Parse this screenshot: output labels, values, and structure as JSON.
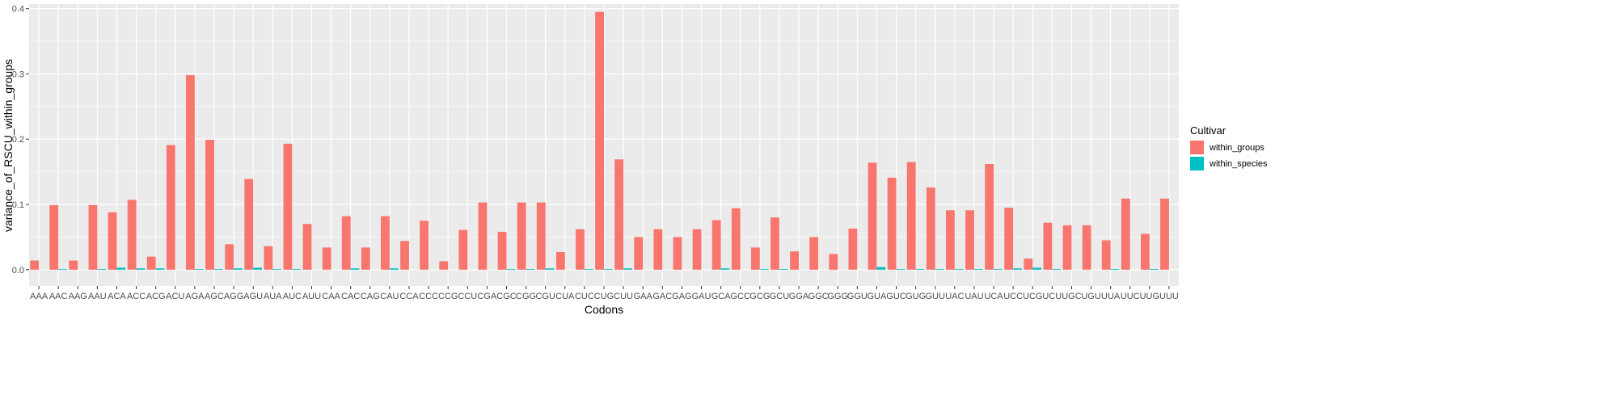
{
  "chart_data": {
    "type": "bar",
    "title": "",
    "xlabel": "Codons",
    "ylabel": "variance_of_RSCU_within_groups",
    "ylim": [
      -0.025,
      0.407
    ],
    "yticks": [
      0.0,
      0.1,
      0.2,
      0.3,
      0.4
    ],
    "ytick_labels": [
      "0.0",
      "0.1",
      "0.2",
      "0.3",
      "0.4"
    ],
    "grid": true,
    "legend": {
      "title": "Cultivar",
      "placement": "right"
    },
    "categories": [
      "AAA",
      "AAC",
      "AAG",
      "AAU",
      "ACA",
      "ACC",
      "ACG",
      "ACU",
      "AGA",
      "AGC",
      "AGG",
      "AGU",
      "AUA",
      "AUC",
      "AUU",
      "CAA",
      "CAC",
      "CAG",
      "CAU",
      "CCA",
      "CCC",
      "CCG",
      "CCU",
      "CGA",
      "CGC",
      "CGG",
      "CGU",
      "CUA",
      "CUC",
      "CUG",
      "CUU",
      "GAA",
      "GAC",
      "GAG",
      "GAU",
      "GCA",
      "GCC",
      "GCG",
      "GCU",
      "GGA",
      "GGC",
      "GGG",
      "GGU",
      "GUA",
      "GUC",
      "GUG",
      "GUU",
      "UAC",
      "UAU",
      "UCA",
      "UCC",
      "UCG",
      "UCU",
      "UGC",
      "UGU",
      "UUA",
      "UUC",
      "UUG",
      "UUU"
    ],
    "series": [
      {
        "name": "within_groups",
        "color": "#F8766D",
        "values": [
          0.014,
          0.099,
          0.014,
          0.099,
          0.088,
          0.107,
          0.02,
          0.191,
          0.298,
          0.199,
          0.039,
          0.139,
          0.036,
          0.193,
          0.07,
          0.034,
          0.082,
          0.034,
          0.082,
          0.044,
          0.075,
          0.013,
          0.061,
          0.103,
          0.058,
          0.103,
          0.103,
          0.027,
          0.062,
          0.395,
          0.169,
          0.05,
          0.062,
          0.05,
          0.062,
          0.076,
          0.094,
          0.034,
          0.08,
          0.028,
          0.05,
          0.024,
          0.063,
          0.164,
          0.141,
          0.165,
          0.126,
          0.091,
          0.091,
          0.162,
          0.095,
          0.017,
          0.072,
          0.068,
          0.068,
          0.045,
          0.109,
          0.055,
          0.109
        ]
      },
      {
        "name": "within_species",
        "color": "#00BFC4",
        "values": [
          0,
          0.001,
          0,
          0.001,
          0.003,
          0.002,
          0.002,
          0,
          0.001,
          0.001,
          0.002,
          0.003,
          0.001,
          0.001,
          0,
          0,
          0.002,
          0,
          0.002,
          0,
          0,
          0,
          0,
          0,
          0.001,
          0.001,
          0.002,
          0,
          0.001,
          0.001,
          0.002,
          0,
          0,
          0,
          0,
          0.002,
          0,
          0.001,
          0.001,
          0,
          0,
          0,
          0,
          0.004,
          0.001,
          0.001,
          0.001,
          0.001,
          0.001,
          0.001,
          0.002,
          0.003,
          0.001,
          0,
          0,
          0.001,
          0,
          0.001,
          0
        ]
      }
    ]
  }
}
